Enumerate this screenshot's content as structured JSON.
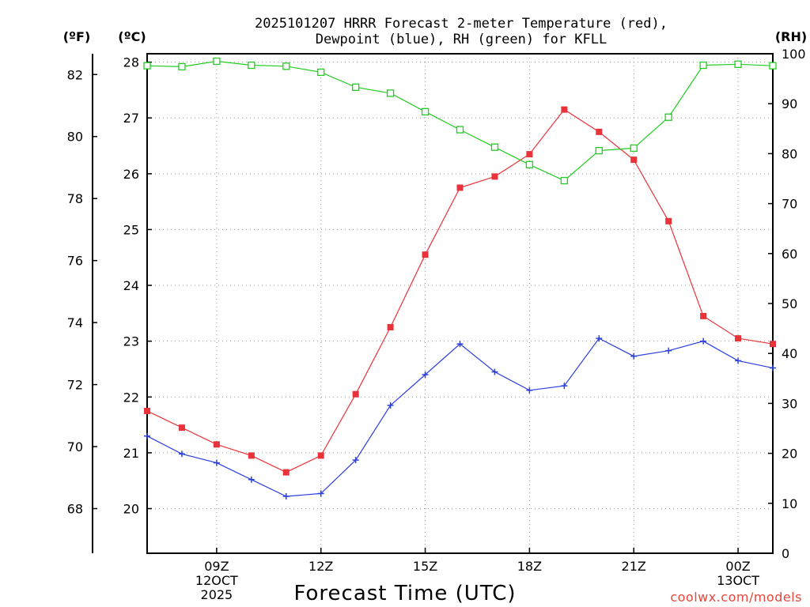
{
  "chart_data": {
    "type": "line",
    "title_line1": "2025101207 HRRR Forecast 2-meter Temperature (red),",
    "title_line2": "Dewpoint (blue), RH (green) for KFLL",
    "units": {
      "fahrenheit": "(ºF)",
      "celsius": "(ºC)",
      "rh": "(RH)"
    },
    "xlabel": "Forecast Time (UTC)",
    "credit": "coolwx.com/models",
    "x_hours": [
      7,
      8,
      9,
      10,
      11,
      12,
      13,
      14,
      15,
      16,
      17,
      18,
      19,
      20,
      21,
      22,
      23,
      24,
      25
    ],
    "xlim": [
      7,
      25
    ],
    "x_ticks": [
      {
        "hour": 9,
        "lines": [
          "09Z",
          "12OCT",
          "2025"
        ]
      },
      {
        "hour": 12,
        "lines": [
          "12Z"
        ]
      },
      {
        "hour": 15,
        "lines": [
          "15Z"
        ]
      },
      {
        "hour": 18,
        "lines": [
          "18Z"
        ]
      },
      {
        "hour": 21,
        "lines": [
          "21Z"
        ]
      },
      {
        "hour": 24,
        "lines": [
          "00Z",
          "13OCT"
        ]
      }
    ],
    "celsius_axis": {
      "ylim": [
        19.2,
        28.15
      ],
      "ticks": [
        20,
        21,
        22,
        23,
        24,
        25,
        26,
        27,
        28
      ]
    },
    "fahrenheit_axis": {
      "ticks": [
        68,
        70,
        72,
        74,
        76,
        78,
        80,
        82
      ]
    },
    "rh_axis": {
      "ylim": [
        0,
        100
      ],
      "ticks": [
        0,
        10,
        20,
        30,
        40,
        50,
        60,
        70,
        80,
        90,
        100
      ]
    },
    "series": [
      {
        "name": "Temperature",
        "axis": "celsius",
        "color": "#e8333a",
        "marker": "filled-square",
        "values": [
          21.75,
          21.45,
          21.15,
          20.95,
          20.65,
          20.95,
          22.05,
          23.25,
          24.55,
          25.75,
          25.95,
          26.35,
          27.15,
          26.75,
          26.25,
          25.15,
          23.45,
          23.05,
          22.95
        ]
      },
      {
        "name": "Dewpoint",
        "axis": "celsius",
        "color": "#2a3fe0",
        "marker": "plus",
        "values": [
          21.3,
          20.98,
          20.82,
          20.52,
          20.22,
          20.27,
          20.87,
          21.85,
          22.4,
          22.95,
          22.45,
          22.12,
          22.2,
          23.05,
          22.73,
          22.83,
          23.0,
          22.65,
          22.52
        ]
      },
      {
        "name": "RH",
        "axis": "rh",
        "color": "#22cc22",
        "marker": "open-square",
        "values": [
          97.6,
          97.4,
          98.5,
          97.7,
          97.5,
          96.3,
          93.3,
          92.1,
          88.4,
          84.8,
          81.3,
          77.8,
          74.6,
          80.6,
          81.1,
          87.3,
          97.7,
          97.9,
          97.6
        ]
      }
    ]
  }
}
